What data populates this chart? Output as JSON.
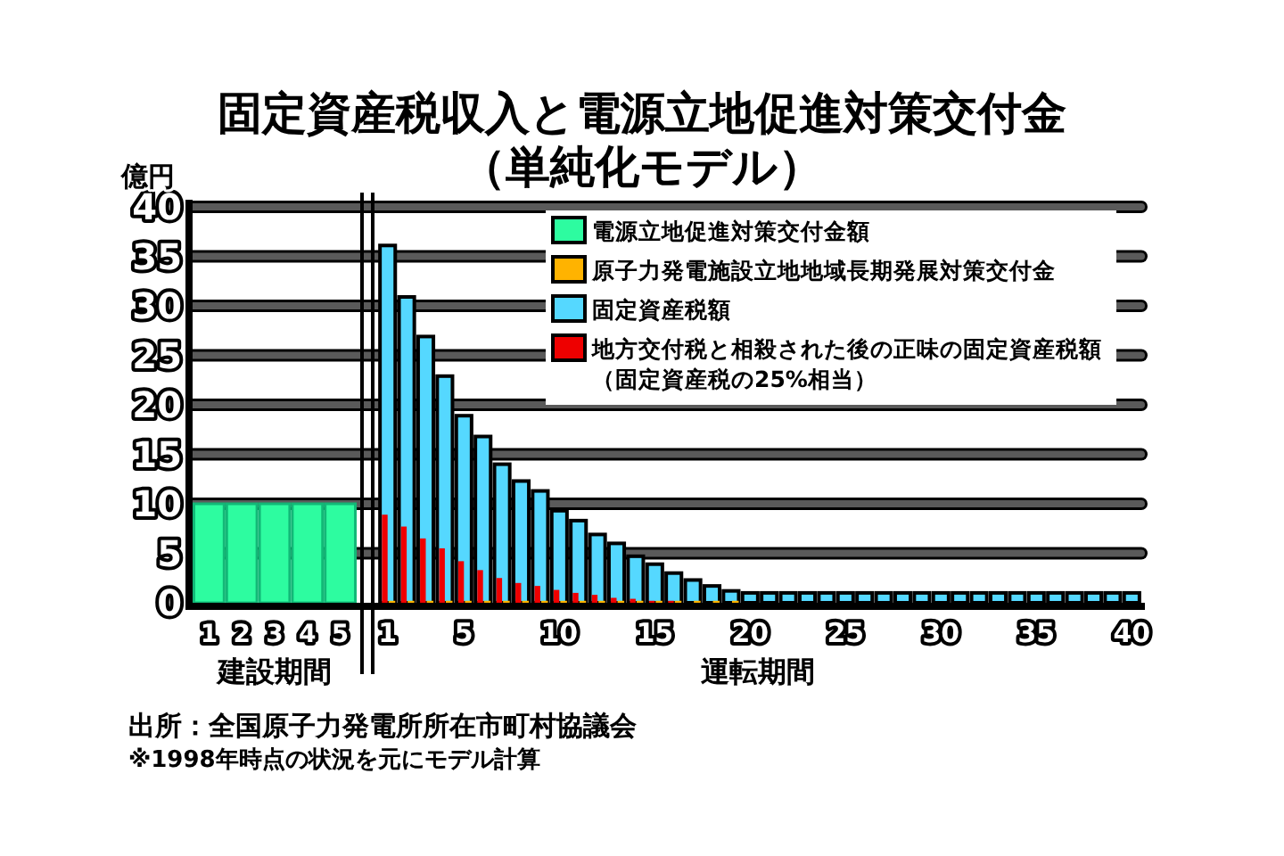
{
  "chart_data": {
    "type": "bar",
    "title": "固定資産税収入と電源立地促進対策交付金",
    "subtitle": "（単純化モデル）",
    "ylabel": "億円",
    "xlabel": "運転期間",
    "categories": [
      "1",
      "2",
      "3",
      "4",
      "5",
      "1",
      null,
      null,
      null,
      "5",
      null,
      null,
      null,
      null,
      "10",
      null,
      null,
      null,
      null,
      "15",
      null,
      null,
      null,
      null,
      "20",
      null,
      null,
      null,
      null,
      "25",
      null,
      null,
      null,
      null,
      "30",
      null,
      null,
      null,
      null,
      "35",
      null,
      null,
      null,
      null,
      "40"
    ],
    "ylim": [
      0,
      40
    ],
    "yticks": [
      0,
      5,
      10,
      15,
      20,
      25,
      30,
      35,
      40
    ],
    "grid": "y",
    "legend": "top right",
    "series": [
      {
        "name": "電源立地促進対策交付金額",
        "color": "#2dfca0",
        "values": [
          10,
          10,
          10,
          10,
          10,
          null,
          null,
          null,
          null,
          null,
          null,
          null,
          null,
          null,
          null,
          null,
          null,
          null,
          null,
          null,
          null,
          null,
          null,
          null,
          null,
          null,
          null,
          null,
          null,
          null,
          null,
          null,
          null,
          null,
          null,
          null,
          null,
          null,
          null,
          null,
          null,
          null,
          null,
          null,
          null
        ]
      },
      {
        "name": "原子力発電施設立地地域長期発展対策交付金",
        "color": "#ffb300",
        "values": [
          null,
          null,
          null,
          null,
          null,
          0.2,
          0.2,
          0.2,
          0.2,
          0.2,
          0.2,
          0.2,
          0.2,
          0.2,
          0.2,
          0.2,
          0.2,
          0.2,
          0.2,
          0.2,
          0.2,
          0.2,
          0.2,
          0.2,
          null,
          null,
          null,
          null,
          null,
          null,
          null,
          null,
          null,
          null,
          null,
          null,
          null,
          null,
          null,
          null,
          null,
          null,
          null,
          null,
          null
        ]
      },
      {
        "name": "固定資産税額",
        "color": "#55d8ff",
        "values": [
          null,
          null,
          null,
          null,
          null,
          36.1,
          30.9,
          26.9,
          22.9,
          18.9,
          16.8,
          14.0,
          12.3,
          11.3,
          9.3,
          8.3,
          6.9,
          6.0,
          4.7,
          3.9,
          3.0,
          2.3,
          1.7,
          1.2,
          1.0,
          1.0,
          1.0,
          1.0,
          1.0,
          1.0,
          1.0,
          1.0,
          1.0,
          1.0,
          1.0,
          1.0,
          1.0,
          1.0,
          1.0,
          1.0,
          1.0,
          1.0,
          1.0,
          1.0,
          1.0
        ]
      },
      {
        "name": "地方交付税と相殺された後の正味の固定資産税額（固定資産税の25%相当）",
        "color": "#ee0000",
        "values": [
          null,
          null,
          null,
          null,
          null,
          8.9,
          7.7,
          6.5,
          5.5,
          4.2,
          3.3,
          2.5,
          2.0,
          1.7,
          1.3,
          1.0,
          0.8,
          0.5,
          0.4,
          0.2,
          0.2,
          null,
          null,
          null,
          null,
          null,
          null,
          null,
          null,
          null,
          null,
          null,
          null,
          null,
          null,
          null,
          null,
          null,
          null,
          null,
          null,
          null,
          null,
          null,
          null
        ]
      }
    ],
    "annotations": [
      "建設期間",
      "出所：全国原子力発電所所在市町村協議会",
      "※1998年時点の状況を元にモデル計算"
    ]
  }
}
